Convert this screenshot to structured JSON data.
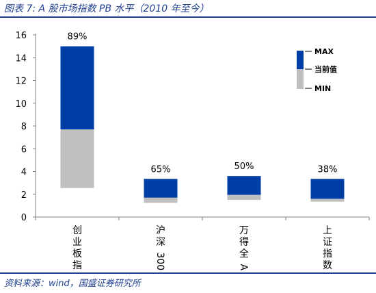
{
  "figure_title": "图表 7: A 股市场指数 PB 水平（2010 年至今）",
  "source": "资料来源：wind，国盛证券研究所",
  "colors": {
    "upper": "#003da5",
    "lower": "#bfbfbf",
    "title": "#1f3f8f",
    "axis": "#7f7f7f"
  },
  "chart_data": {
    "type": "bar",
    "subtype": "floating-range",
    "categories": [
      "创业板指",
      "沪深300",
      "万得全A",
      "上证指数"
    ],
    "series": [
      {
        "name": "MAX",
        "values": [
          15.0,
          3.35,
          3.6,
          3.35
        ]
      },
      {
        "name": "当前值",
        "values": [
          7.7,
          1.7,
          1.95,
          1.6
        ]
      },
      {
        "name": "MIN",
        "values": [
          2.55,
          1.25,
          1.5,
          1.35
        ]
      }
    ],
    "percentile_labels": [
      "89%",
      "65%",
      "50%",
      "38%"
    ],
    "ylim": [
      0,
      16
    ],
    "yticks": [
      0,
      2,
      4,
      6,
      8,
      10,
      12,
      14,
      16
    ],
    "legend_placement": "top-right",
    "grid": false,
    "title": "",
    "xlabel": "",
    "ylabel": ""
  }
}
